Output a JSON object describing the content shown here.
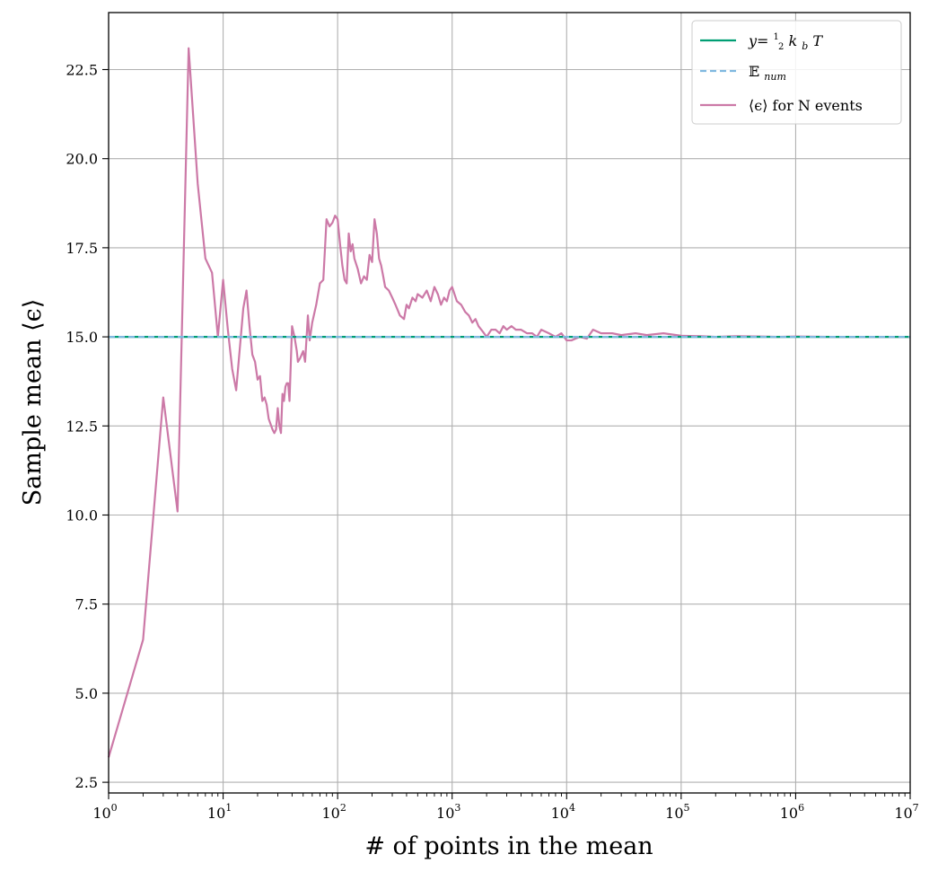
{
  "chart_data": {
    "type": "line",
    "xlabel": "# of points in the mean",
    "ylabel": "Sample mean ⟨ϵ⟩",
    "xscale": "log",
    "xlim": [
      1,
      10000000
    ],
    "ylim": [
      2.2,
      24.1
    ],
    "x_ticks": [
      {
        "base": "10",
        "exp": "0"
      },
      {
        "base": "10",
        "exp": "1"
      },
      {
        "base": "10",
        "exp": "2"
      },
      {
        "base": "10",
        "exp": "3"
      },
      {
        "base": "10",
        "exp": "4"
      },
      {
        "base": "10",
        "exp": "5"
      },
      {
        "base": "10",
        "exp": "6"
      },
      {
        "base": "10",
        "exp": "7"
      }
    ],
    "y_ticks": [
      "2.5",
      "5.0",
      "7.5",
      "10.0",
      "12.5",
      "15.0",
      "17.5",
      "20.0",
      "22.5"
    ],
    "grid": true,
    "legend_position": "top-right",
    "series": [
      {
        "name": "y=½k_bT",
        "style": "solid",
        "color": "#009E73",
        "x": [
          1,
          10000000
        ],
        "y": [
          15.0,
          15.0
        ]
      },
      {
        "name": "𝔼_num",
        "style": "dashed",
        "color": "#7FB8E0",
        "x": [
          1,
          10000000
        ],
        "y": [
          15.0,
          15.0
        ]
      },
      {
        "name": "⟨ϵ⟩ for N events",
        "style": "solid",
        "color": "#CC79A7",
        "x": [
          1,
          2,
          3,
          4,
          5,
          6,
          7,
          8,
          9,
          10,
          11,
          12,
          13,
          15,
          16,
          17,
          18,
          19,
          20,
          21,
          22,
          23,
          24,
          25,
          27,
          28,
          29,
          30,
          31,
          32,
          33,
          34,
          35,
          36,
          37,
          38,
          40,
          42,
          44,
          45,
          47,
          50,
          52,
          55,
          57,
          60,
          65,
          70,
          75,
          80,
          85,
          90,
          95,
          100,
          105,
          110,
          115,
          120,
          125,
          130,
          135,
          140,
          150,
          160,
          170,
          180,
          190,
          200,
          210,
          220,
          230,
          240,
          250,
          260,
          280,
          300,
          320,
          350,
          380,
          400,
          420,
          450,
          480,
          500,
          550,
          600,
          650,
          700,
          750,
          800,
          850,
          900,
          950,
          1000,
          1100,
          1200,
          1300,
          1400,
          1500,
          1600,
          1700,
          1800,
          1900,
          2000,
          2200,
          2400,
          2600,
          2800,
          3000,
          3300,
          3600,
          4000,
          4500,
          5000,
          5500,
          6000,
          7000,
          8000,
          9000,
          10000,
          11000,
          13000,
          15000,
          17000,
          20000,
          25000,
          30000,
          40000,
          50000,
          70000,
          100000,
          150000,
          200000,
          300000,
          500000,
          700000,
          1000000,
          2000000,
          3000000,
          5000000,
          10000000
        ],
        "y": [
          3.2,
          6.5,
          13.3,
          10.1,
          23.1,
          19.3,
          17.2,
          16.8,
          15.0,
          16.6,
          15.2,
          14.1,
          13.5,
          15.8,
          16.3,
          15.3,
          14.5,
          14.3,
          13.8,
          13.9,
          13.2,
          13.3,
          13.1,
          12.7,
          12.4,
          12.3,
          12.4,
          13.0,
          12.5,
          12.3,
          13.4,
          13.2,
          13.6,
          13.7,
          13.7,
          13.2,
          15.3,
          15.0,
          14.6,
          14.3,
          14.4,
          14.6,
          14.3,
          15.6,
          14.9,
          15.4,
          15.9,
          16.5,
          16.6,
          18.3,
          18.1,
          18.2,
          18.4,
          18.3,
          17.6,
          17.0,
          16.6,
          16.5,
          17.9,
          17.4,
          17.6,
          17.2,
          16.9,
          16.5,
          16.7,
          16.6,
          17.3,
          17.1,
          18.3,
          17.9,
          17.2,
          17.0,
          16.7,
          16.4,
          16.3,
          16.1,
          15.9,
          15.6,
          15.5,
          15.9,
          15.8,
          16.1,
          16.0,
          16.2,
          16.1,
          16.3,
          16.0,
          16.4,
          16.2,
          15.9,
          16.1,
          16.0,
          16.3,
          16.4,
          16.0,
          15.9,
          15.7,
          15.6,
          15.4,
          15.5,
          15.3,
          15.2,
          15.1,
          15.0,
          15.2,
          15.2,
          15.1,
          15.3,
          15.2,
          15.3,
          15.2,
          15.2,
          15.1,
          15.1,
          15.0,
          15.2,
          15.1,
          15.0,
          15.1,
          14.9,
          14.9,
          15.0,
          14.95,
          15.2,
          15.1,
          15.1,
          15.05,
          15.1,
          15.05,
          15.1,
          15.03,
          15.02,
          15.0,
          15.02,
          15.01,
          15.0,
          15.01,
          15.0,
          15.0,
          15.0,
          15.0
        ]
      }
    ]
  },
  "legend": {
    "entry1": {
      "prefix": "y=",
      "frac_num": "1",
      "frac_den": "2",
      "k": "k",
      "k_sub": "b",
      "t": "T"
    },
    "entry2": {
      "symbol": "𝔼",
      "sub": "num"
    },
    "entry3": {
      "symbol": "⟨ϵ⟩",
      "text": " for N events"
    }
  }
}
